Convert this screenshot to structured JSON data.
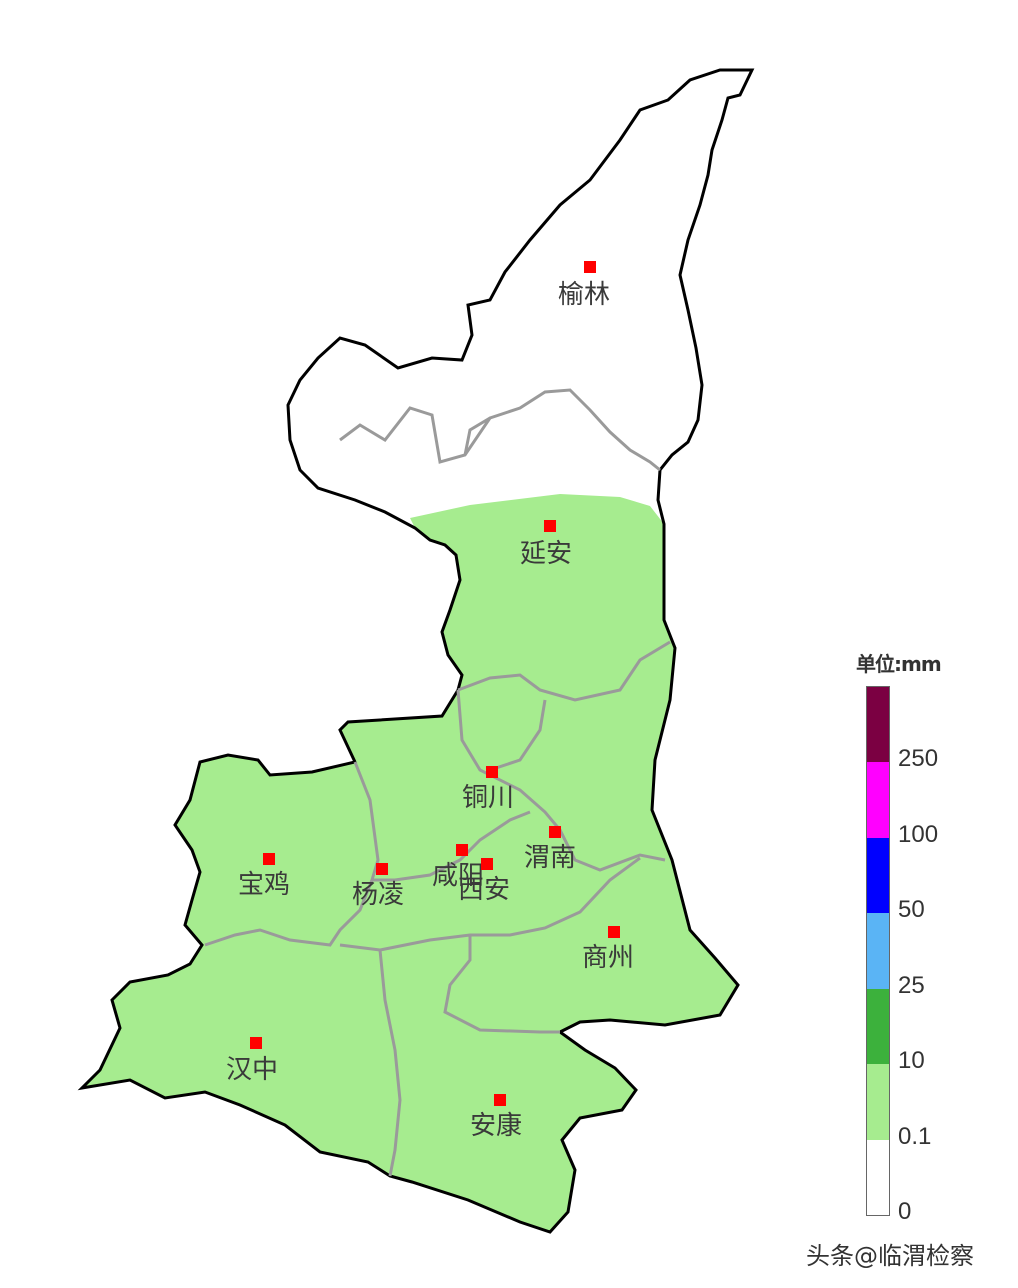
{
  "legend": {
    "unit_label": "单位:mm",
    "segments": [
      {
        "color": "#ffffff"
      },
      {
        "color": "#a6ec8f"
      },
      {
        "color": "#3cb13c"
      },
      {
        "color": "#5ab4f5"
      },
      {
        "color": "#0000ff"
      },
      {
        "color": "#ff00ff"
      },
      {
        "color": "#7b0042"
      }
    ],
    "ticks": [
      "0",
      "0.1",
      "10",
      "25",
      "50",
      "100",
      "250"
    ]
  },
  "cities": [
    {
      "name": "榆林"
    },
    {
      "name": "延安"
    },
    {
      "name": "铜川"
    },
    {
      "name": "渭南"
    },
    {
      "name": "咸阳"
    },
    {
      "name": "西安"
    },
    {
      "name": "杨凌"
    },
    {
      "name": "宝鸡"
    },
    {
      "name": "商州"
    },
    {
      "name": "汉中"
    },
    {
      "name": "安康"
    }
  ],
  "colors": {
    "rain_fill": "#a6ec8f",
    "no_rain_fill": "#ffffff",
    "city_marker": "#ff0000",
    "border": "#000000",
    "district_border": "#9a9a9a"
  },
  "watermark": "头条@临渭检察"
}
